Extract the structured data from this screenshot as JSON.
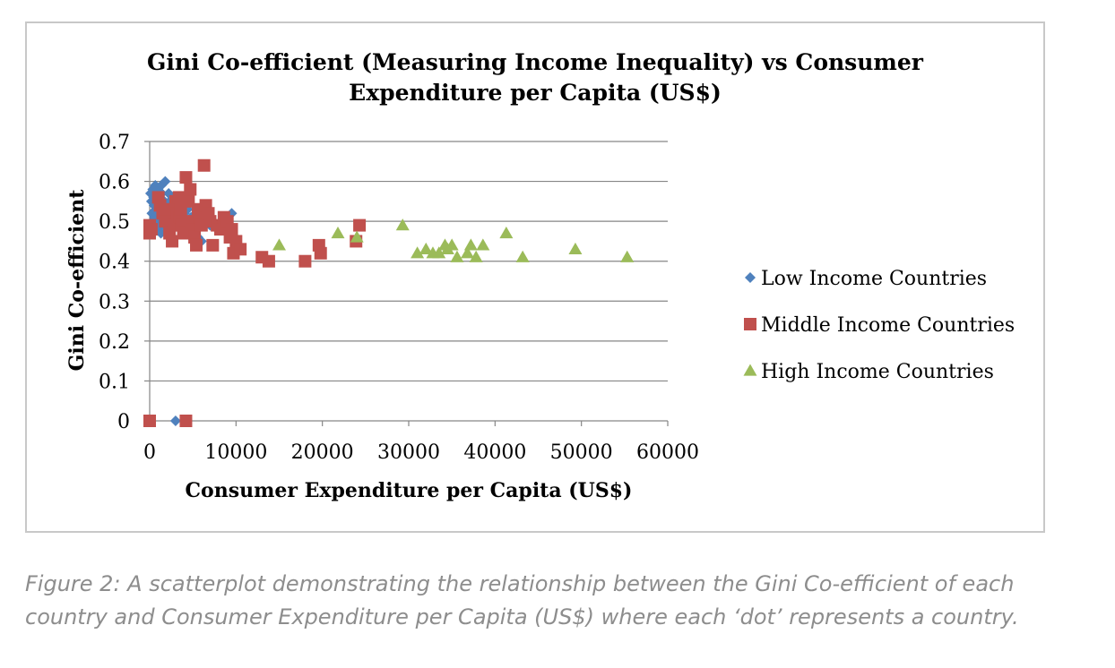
{
  "chart_data": {
    "type": "scatter",
    "title_lines": [
      "Gini Co-efficient (Measuring Income Inequality) vs Consumer",
      "Expenditure per Capita (US$)"
    ],
    "xlabel": "Consumer Expenditure per Capita (US$)",
    "ylabel": "Gini Co-efficient",
    "xlim": [
      0,
      60000
    ],
    "ylim": [
      0,
      0.7
    ],
    "x_ticks": [
      "0",
      "10000",
      "20000",
      "30000",
      "40000",
      "50000",
      "60000"
    ],
    "y_ticks": [
      "0",
      "0.1",
      "0.2",
      "0.3",
      "0.4",
      "0.5",
      "0.6",
      "0.7"
    ],
    "grid": "horizontal",
    "legend_position": "right",
    "series": [
      {
        "name": "Low Income Countries",
        "marker": "diamond",
        "color": "#4f81bd",
        "points": [
          [
            100,
            0.57
          ],
          [
            200,
            0.55
          ],
          [
            250,
            0.52
          ],
          [
            300,
            0.5
          ],
          [
            350,
            0.58
          ],
          [
            450,
            0.56
          ],
          [
            500,
            0.54
          ],
          [
            550,
            0.51
          ],
          [
            600,
            0.49
          ],
          [
            650,
            0.59
          ],
          [
            700,
            0.57
          ],
          [
            800,
            0.53
          ],
          [
            850,
            0.5
          ],
          [
            900,
            0.48
          ],
          [
            950,
            0.58
          ],
          [
            1000,
            0.55
          ],
          [
            1050,
            0.52
          ],
          [
            1100,
            0.56
          ],
          [
            1200,
            0.54
          ],
          [
            1250,
            0.5
          ],
          [
            1300,
            0.47
          ],
          [
            1350,
            0.59
          ],
          [
            1400,
            0.57
          ],
          [
            1500,
            0.52
          ],
          [
            1600,
            0.49
          ],
          [
            1700,
            0.55
          ],
          [
            1800,
            0.6
          ],
          [
            1900,
            0.53
          ],
          [
            2000,
            0.51
          ],
          [
            2100,
            0.48
          ],
          [
            2200,
            0.57
          ],
          [
            2300,
            0.55
          ],
          [
            2400,
            0.52
          ],
          [
            2500,
            0.5
          ],
          [
            2600,
            0.54
          ],
          [
            2800,
            0.56
          ],
          [
            2900,
            0.49
          ],
          [
            3000,
            0.53
          ],
          [
            3200,
            0.51
          ],
          [
            3400,
            0.54
          ],
          [
            3600,
            0.5
          ],
          [
            3800,
            0.55
          ],
          [
            4000,
            0.52
          ],
          [
            4200,
            0.48
          ],
          [
            4400,
            0.53
          ],
          [
            4600,
            0.47
          ],
          [
            4800,
            0.51
          ],
          [
            5200,
            0.49
          ],
          [
            5600,
            0.46
          ],
          [
            6000,
            0.45
          ],
          [
            7000,
            0.49
          ],
          [
            9500,
            0.52
          ],
          [
            3000,
            0.0
          ]
        ]
      },
      {
        "name": "Middle Income Countries",
        "marker": "square",
        "color": "#c0504d",
        "points": [
          [
            0,
            0.0
          ],
          [
            4200,
            0.0
          ],
          [
            0,
            0.49
          ],
          [
            0,
            0.47
          ],
          [
            200,
            0.48
          ],
          [
            1000,
            0.56
          ],
          [
            1200,
            0.54
          ],
          [
            1500,
            0.52
          ],
          [
            1800,
            0.5
          ],
          [
            2000,
            0.53
          ],
          [
            2300,
            0.47
          ],
          [
            2600,
            0.45
          ],
          [
            2800,
            0.49
          ],
          [
            3000,
            0.55
          ],
          [
            3200,
            0.52
          ],
          [
            3400,
            0.56
          ],
          [
            3500,
            0.51
          ],
          [
            3600,
            0.53
          ],
          [
            3700,
            0.49
          ],
          [
            3900,
            0.47
          ],
          [
            4200,
            0.61
          ],
          [
            4500,
            0.55
          ],
          [
            4700,
            0.58
          ],
          [
            4800,
            0.5
          ],
          [
            5000,
            0.48
          ],
          [
            5200,
            0.46
          ],
          [
            5400,
            0.44
          ],
          [
            5600,
            0.53
          ],
          [
            5800,
            0.51
          ],
          [
            6000,
            0.49
          ],
          [
            6300,
            0.64
          ],
          [
            6500,
            0.54
          ],
          [
            6800,
            0.52
          ],
          [
            7000,
            0.5
          ],
          [
            7300,
            0.44
          ],
          [
            7800,
            0.49
          ],
          [
            8200,
            0.48
          ],
          [
            8600,
            0.51
          ],
          [
            9000,
            0.5
          ],
          [
            9300,
            0.46
          ],
          [
            9500,
            0.48
          ],
          [
            9700,
            0.42
          ],
          [
            10000,
            0.45
          ],
          [
            10500,
            0.43
          ],
          [
            13000,
            0.41
          ],
          [
            13800,
            0.4
          ],
          [
            18000,
            0.4
          ],
          [
            19600,
            0.44
          ],
          [
            19800,
            0.42
          ],
          [
            23900,
            0.45
          ],
          [
            24300,
            0.49
          ]
        ]
      },
      {
        "name": "High Income Countries",
        "marker": "triangle",
        "color": "#9bbb59",
        "points": [
          [
            15000,
            0.44
          ],
          [
            21800,
            0.47
          ],
          [
            24000,
            0.46
          ],
          [
            29300,
            0.49
          ],
          [
            31000,
            0.42
          ],
          [
            32000,
            0.43
          ],
          [
            32800,
            0.42
          ],
          [
            33500,
            0.42
          ],
          [
            34200,
            0.44
          ],
          [
            34500,
            0.43
          ],
          [
            35000,
            0.44
          ],
          [
            35600,
            0.41
          ],
          [
            36800,
            0.42
          ],
          [
            37200,
            0.44
          ],
          [
            37800,
            0.41
          ],
          [
            38600,
            0.44
          ],
          [
            41300,
            0.47
          ],
          [
            43200,
            0.41
          ],
          [
            49300,
            0.43
          ],
          [
            55300,
            0.41
          ]
        ]
      }
    ]
  },
  "caption": {
    "text_line1": "Figure 2: A scatterplot demonstrating the relationship between the Gini Co-efficient of each",
    "text_line2": "country and Consumer Expenditure per Capita (US$) where each ‘dot’ represents a country."
  }
}
